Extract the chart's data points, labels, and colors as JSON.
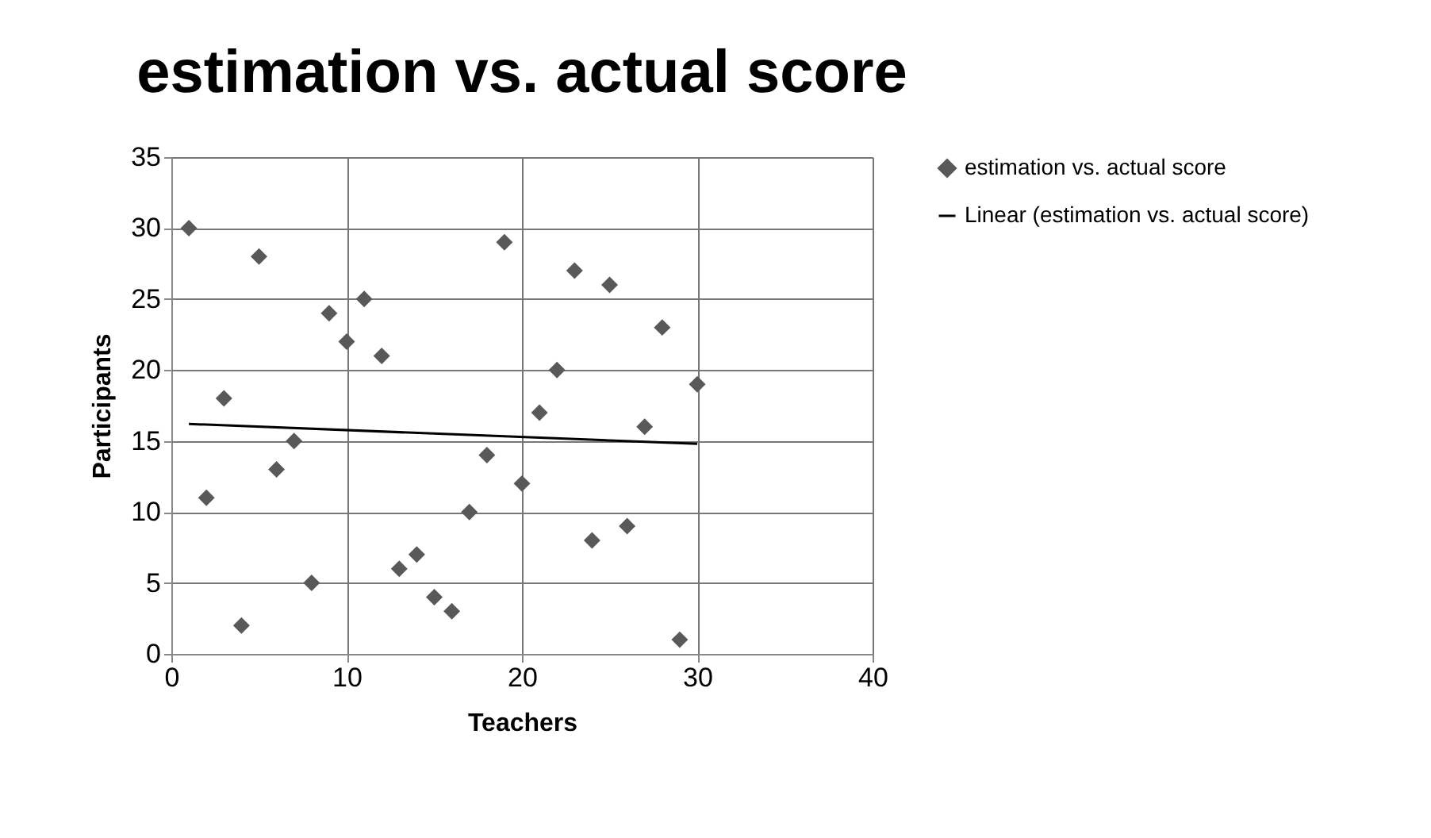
{
  "chart_data": {
    "type": "scatter",
    "title": "estimation vs. actual score",
    "xlabel": "Teachers",
    "ylabel": "Participants",
    "xlim": [
      0,
      40
    ],
    "xticks": [
      0,
      10,
      20,
      30,
      40
    ],
    "ylim": [
      0,
      35
    ],
    "yticks": [
      0,
      5,
      10,
      15,
      20,
      25,
      30,
      35
    ],
    "grid": true,
    "legend": "right",
    "series": [
      {
        "name": "estimation vs. actual score",
        "marker": "diamond",
        "color": "#595959",
        "x": [
          1,
          2,
          3,
          4,
          5,
          6,
          7,
          8,
          9,
          10,
          11,
          12,
          13,
          14,
          15,
          16,
          17,
          18,
          19,
          20,
          21,
          22,
          23,
          24,
          25,
          26,
          27,
          28,
          29,
          30
        ],
        "values": [
          30,
          11,
          18,
          2,
          28,
          13,
          15,
          5,
          24,
          22,
          25,
          21,
          6,
          7,
          4,
          3,
          10,
          14,
          29,
          12,
          17,
          20,
          27,
          8,
          26,
          9,
          16,
          23,
          1,
          19
        ]
      },
      {
        "name": "Linear (estimation vs. actual score)",
        "type": "line",
        "marker": "none",
        "color": "#000000",
        "x": [
          1,
          30
        ],
        "values": [
          16.2,
          14.8
        ]
      }
    ]
  }
}
